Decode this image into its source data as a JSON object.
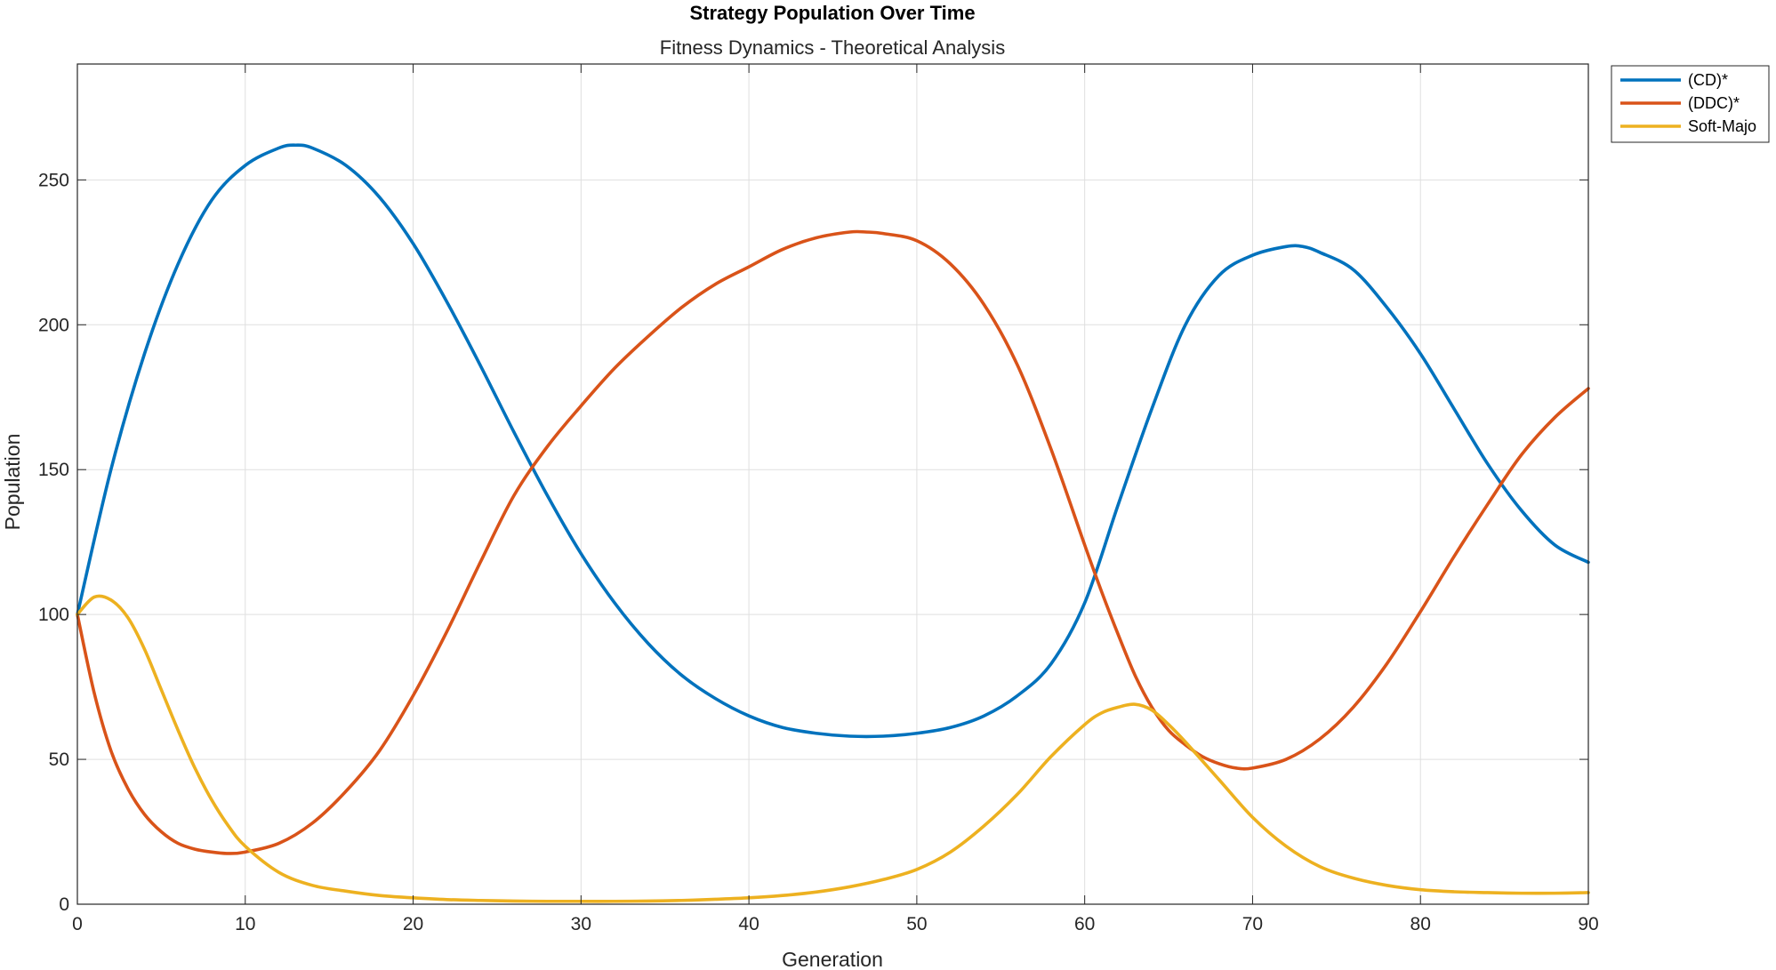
{
  "chart_data": {
    "type": "line",
    "title": "Strategy Population Over Time",
    "subtitle": "Fitness Dynamics - Theoretical Analysis",
    "xlabel": "Generation",
    "ylabel": "Population",
    "xlim": [
      0,
      90
    ],
    "ylim": [
      0,
      290
    ],
    "xticks": [
      0,
      10,
      20,
      30,
      40,
      50,
      60,
      70,
      80,
      90
    ],
    "yticks": [
      0,
      50,
      100,
      150,
      200,
      250
    ],
    "grid": true,
    "legend_position": "outside-top-right",
    "series": [
      {
        "name": "(CD)*",
        "color": "#0072BD",
        "x": [
          0,
          2,
          4,
          6,
          8,
          10,
          12,
          13,
          14,
          16,
          18,
          20,
          22,
          24,
          26,
          28,
          30,
          32,
          34,
          36,
          38,
          40,
          42,
          44,
          46,
          48,
          50,
          52,
          54,
          56,
          58,
          60,
          62,
          64,
          66,
          68,
          70,
          72,
          73,
          74,
          76,
          78,
          80,
          82,
          84,
          86,
          88,
          90
        ],
        "y": [
          100,
          150,
          190,
          221,
          243,
          255,
          261,
          262,
          261,
          255,
          244,
          228,
          208,
          186,
          163,
          141,
          121,
          104,
          90,
          79,
          71,
          65,
          61,
          59,
          58,
          58,
          59,
          61,
          65,
          72,
          83,
          104,
          138,
          171,
          200,
          217,
          224,
          227,
          227,
          225,
          219,
          206,
          190,
          171,
          152,
          136,
          124,
          118
        ]
      },
      {
        "name": "(DDC)*",
        "color": "#D95319",
        "x": [
          0,
          1,
          2,
          3,
          4,
          5,
          6,
          7,
          8,
          9,
          10,
          12,
          14,
          16,
          18,
          20,
          22,
          24,
          26,
          28,
          30,
          32,
          34,
          36,
          38,
          40,
          42,
          44,
          46,
          47,
          48,
          50,
          52,
          54,
          56,
          58,
          60,
          61,
          62,
          63,
          64,
          65,
          66,
          67,
          68,
          69,
          70,
          72,
          74,
          76,
          78,
          80,
          82,
          84,
          86,
          88,
          90
        ],
        "y": [
          100,
          73,
          53,
          40,
          31,
          25,
          21,
          19,
          18,
          17.5,
          18,
          21,
          28,
          39,
          53,
          72,
          94,
          118,
          141,
          158,
          172,
          185,
          196,
          206,
          214,
          220,
          226,
          230,
          232,
          232,
          231.5,
          229,
          221,
          207,
          186,
          157,
          124,
          108,
          93,
          79,
          68,
          60,
          55,
          51,
          48.5,
          47,
          47,
          50,
          57,
          68,
          83,
          101,
          120,
          138,
          155,
          168,
          178
        ]
      },
      {
        "name": "Soft-Majo",
        "color": "#EDB120",
        "x": [
          0,
          1,
          2,
          3,
          4,
          5,
          6,
          7,
          8,
          9,
          10,
          12,
          14,
          16,
          18,
          20,
          22,
          24,
          26,
          28,
          30,
          32,
          34,
          36,
          38,
          40,
          42,
          44,
          46,
          48,
          50,
          52,
          54,
          56,
          58,
          60,
          61,
          62,
          63,
          64,
          65,
          66,
          68,
          70,
          72,
          74,
          76,
          78,
          80,
          82,
          84,
          86,
          88,
          90
        ],
        "y": [
          100,
          106,
          105,
          99,
          88,
          74,
          60,
          47,
          36,
          27,
          20,
          11,
          6.5,
          4.5,
          3,
          2.2,
          1.6,
          1.3,
          1.1,
          1,
          1,
          1,
          1.1,
          1.3,
          1.7,
          2.2,
          3,
          4.2,
          6,
          8.5,
          12,
          18,
          27,
          38,
          51,
          62,
          66,
          68,
          69,
          67,
          62,
          56,
          43,
          30,
          20,
          13,
          9,
          6.5,
          5,
          4.3,
          4,
          3.8,
          3.8,
          4
        ]
      }
    ]
  }
}
